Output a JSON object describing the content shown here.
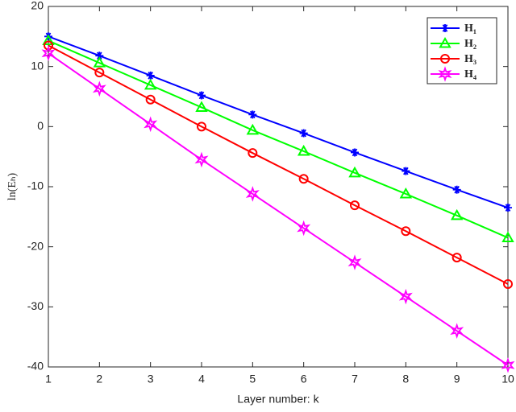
{
  "chart_data": {
    "type": "line",
    "x_label": "Layer number: k",
    "y_label": "ln(Eₕ)",
    "x": [
      1,
      2,
      3,
      4,
      5,
      6,
      7,
      8,
      9,
      10
    ],
    "xlim": [
      1,
      10
    ],
    "xticks": [
      1,
      2,
      3,
      4,
      5,
      6,
      7,
      8,
      9,
      10
    ],
    "ylim": [
      -40,
      20
    ],
    "yticks": [
      -40,
      -30,
      -20,
      -10,
      0,
      10,
      20
    ],
    "grid": false,
    "legend": "upper right",
    "series": [
      {
        "name": "H₁",
        "color": "#0000ff",
        "marker": "asterisk",
        "values": [
          15,
          11.8,
          8.5,
          5.2,
          2,
          -1.1,
          -4.3,
          -7.4,
          -10.5,
          -13.5
        ]
      },
      {
        "name": "H₂",
        "color": "#00ff00",
        "marker": "triangle",
        "values": [
          14.3,
          10.6,
          6.9,
          3.2,
          -0.6,
          -4.1,
          -7.7,
          -11.2,
          -14.8,
          -18.5
        ]
      },
      {
        "name": "H₃",
        "color": "#ff0000",
        "marker": "circle",
        "values": [
          13.5,
          9,
          4.5,
          0,
          -4.4,
          -8.7,
          -13.1,
          -17.4,
          -21.8,
          -26.2
        ]
      },
      {
        "name": "H₄",
        "color": "#ff00ff",
        "marker": "star",
        "values": [
          12.2,
          6.3,
          0.4,
          -5.5,
          -11.2,
          -16.9,
          -22.6,
          -28.3,
          -34,
          -39.7
        ]
      }
    ]
  }
}
